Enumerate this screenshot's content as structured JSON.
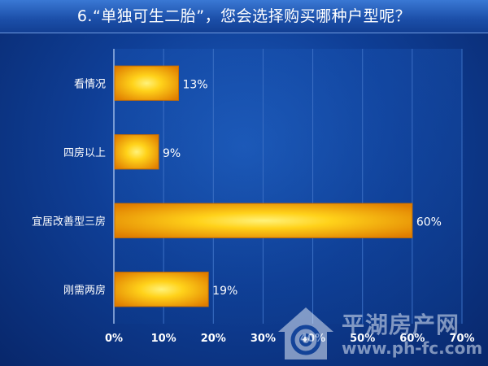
{
  "chart_data": {
    "type": "bar",
    "orientation": "horizontal",
    "title": "6.“单独可生二胎”，您会选择购买哪种户型呢？",
    "categories": [
      "看情况",
      "四房以上",
      "宜居改善型三房",
      "刚需两房"
    ],
    "values": [
      13,
      9,
      60,
      19
    ],
    "value_labels": [
      "13%",
      "9%",
      "60%",
      "19%"
    ],
    "xlim": [
      0,
      70
    ],
    "x_ticks": [
      "0%",
      "10%",
      "20%",
      "30%",
      "40%",
      "50%",
      "60%",
      "70%"
    ],
    "grid": true,
    "bar_colors": {
      "center": "#ffe23a",
      "edge": "#e88a00"
    }
  },
  "watermark": {
    "brand": "平湖房产网",
    "url": "www.ph-fc.com"
  }
}
